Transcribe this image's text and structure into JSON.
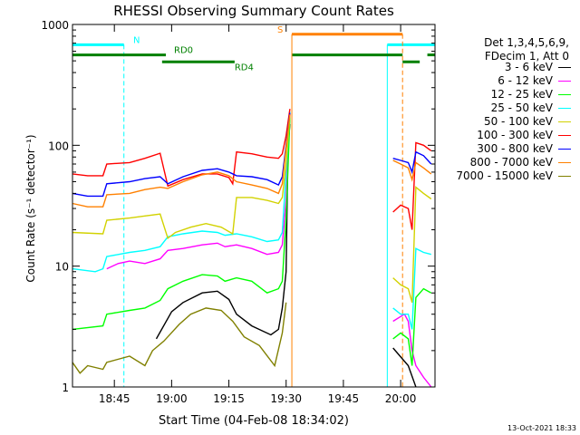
{
  "chart_data": {
    "type": "line",
    "title": "RHESSI Observing Summary Count Rates",
    "xlabel": "Start Time (04-Feb-08 18:34:02)",
    "ylabel": "Count Rate (s⁻¹ detector⁻¹)",
    "yscale": "log",
    "ylim": [
      1,
      1000
    ],
    "xlim": [
      "18:34:02",
      "20:09:00"
    ],
    "x_ticks": [
      "18:45",
      "19:00",
      "19:15",
      "19:30",
      "19:45",
      "20:00"
    ],
    "y_ticks": [
      {
        "value": 1,
        "label": "1"
      },
      {
        "value": 10,
        "label": "10"
      },
      {
        "value": 100,
        "label": "100"
      },
      {
        "value": 1000,
        "label": "1000"
      }
    ],
    "legend": {
      "position": "right",
      "header": [
        "Det 1,3,4,5,6,9,",
        "FDecim 1, Att 0"
      ]
    },
    "series": [
      {
        "name": "3 - 6 keV",
        "color": "#000000",
        "points": [
          [
            "18:34",
            null
          ],
          [
            "18:55",
            null
          ],
          [
            "18:56",
            2.5
          ],
          [
            "19:00",
            4.2
          ],
          [
            "19:03",
            5.0
          ],
          [
            "19:08",
            6.0
          ],
          [
            "19:12",
            6.2
          ],
          [
            "19:15",
            5.3
          ],
          [
            "19:17",
            4.0
          ],
          [
            "19:21",
            3.2
          ],
          [
            "19:26",
            2.7
          ],
          [
            "19:28",
            3.0
          ],
          [
            "19:29",
            4.5
          ],
          [
            "19:30",
            9.0
          ],
          [
            "19:30:30",
            100
          ],
          [
            "19:31",
            150
          ],
          [
            "19:31:30",
            null
          ],
          [
            "19:57",
            null
          ],
          [
            "19:58",
            2.1
          ],
          [
            "20:02",
            1.5
          ],
          [
            "20:04",
            1.0
          ]
        ]
      },
      {
        "name": "6 - 12 keV",
        "color": "#ff00ff",
        "points": [
          [
            "18:34",
            null
          ],
          [
            "18:42",
            null
          ],
          [
            "18:43",
            9.5
          ],
          [
            "18:46",
            10.5
          ],
          [
            "18:49",
            11.0
          ],
          [
            "18:53",
            10.5
          ],
          [
            "18:57",
            11.5
          ],
          [
            "18:59",
            13.5
          ],
          [
            "19:03",
            14.0
          ],
          [
            "19:08",
            15.0
          ],
          [
            "19:12",
            15.5
          ],
          [
            "19:14",
            14.5
          ],
          [
            "19:17",
            15.0
          ],
          [
            "19:21",
            14.0
          ],
          [
            "19:25",
            12.5
          ],
          [
            "19:28",
            13.0
          ],
          [
            "19:29",
            15.0
          ],
          [
            "19:30",
            35
          ],
          [
            "19:31",
            180
          ],
          [
            "19:31:30",
            null
          ],
          [
            "19:57",
            null
          ],
          [
            "19:58",
            3.5
          ],
          [
            "20:01",
            4.0
          ],
          [
            "20:02",
            3.5
          ],
          [
            "20:03",
            2.0
          ],
          [
            "20:04",
            1.5
          ],
          [
            "20:06",
            1.2
          ],
          [
            "20:08",
            1.0
          ]
        ]
      },
      {
        "name": "12 - 25 keV",
        "color": "#00ff00",
        "points": [
          [
            "18:34",
            3.0
          ],
          [
            "18:42",
            3.2
          ],
          [
            "18:43",
            4.0
          ],
          [
            "18:49",
            4.3
          ],
          [
            "18:53",
            4.5
          ],
          [
            "18:57",
            5.2
          ],
          [
            "18:59",
            6.5
          ],
          [
            "19:03",
            7.5
          ],
          [
            "19:08",
            8.5
          ],
          [
            "19:12",
            8.3
          ],
          [
            "19:14",
            7.5
          ],
          [
            "19:17",
            8.0
          ],
          [
            "19:21",
            7.5
          ],
          [
            "19:25",
            6.0
          ],
          [
            "19:28",
            6.5
          ],
          [
            "19:29",
            7.5
          ],
          [
            "19:30",
            25
          ],
          [
            "19:31",
            170
          ],
          [
            "19:31:30",
            null
          ],
          [
            "19:57",
            null
          ],
          [
            "19:58",
            2.5
          ],
          [
            "20:00",
            2.8
          ],
          [
            "20:02",
            2.5
          ],
          [
            "20:03",
            1.5
          ],
          [
            "20:04",
            5.5
          ],
          [
            "20:06",
            6.5
          ],
          [
            "20:08",
            6.0
          ]
        ]
      },
      {
        "name": "25 - 50 keV",
        "color": "#00ffff",
        "points": [
          [
            "18:34",
            9.5
          ],
          [
            "18:40",
            9.0
          ],
          [
            "18:42",
            9.5
          ],
          [
            "18:43",
            12.0
          ],
          [
            "18:49",
            13.0
          ],
          [
            "18:53",
            13.5
          ],
          [
            "18:57",
            14.5
          ],
          [
            "18:59",
            17.5
          ],
          [
            "19:03",
            18.5
          ],
          [
            "19:08",
            19.5
          ],
          [
            "19:12",
            19.0
          ],
          [
            "19:14",
            18.0
          ],
          [
            "19:17",
            18.5
          ],
          [
            "19:21",
            17.5
          ],
          [
            "19:25",
            16.0
          ],
          [
            "19:28",
            16.5
          ],
          [
            "19:29",
            19.0
          ],
          [
            "19:30",
            60
          ],
          [
            "19:31",
            190
          ],
          [
            "19:31:30",
            null
          ],
          [
            "19:57",
            null
          ],
          [
            "19:58",
            4.5
          ],
          [
            "20:00",
            4.0
          ],
          [
            "20:02",
            4.0
          ],
          [
            "20:03",
            3.0
          ],
          [
            "20:04",
            14.0
          ],
          [
            "20:06",
            13.0
          ],
          [
            "20:08",
            12.5
          ]
        ]
      },
      {
        "name": "50 - 100 keV",
        "color": "#d2d200",
        "points": [
          [
            "18:34",
            19.0
          ],
          [
            "18:42",
            18.5
          ],
          [
            "18:43",
            24.0
          ],
          [
            "18:49",
            25.0
          ],
          [
            "18:53",
            26.0
          ],
          [
            "18:57",
            27.0
          ],
          [
            "18:59",
            17.0
          ],
          [
            "19:01",
            19.0
          ],
          [
            "19:05",
            21.0
          ],
          [
            "19:09",
            22.5
          ],
          [
            "19:13",
            21.0
          ],
          [
            "19:16",
            18.5
          ],
          [
            "19:17",
            37.0
          ],
          [
            "19:21",
            37.0
          ],
          [
            "19:25",
            35.0
          ],
          [
            "19:28",
            33.0
          ],
          [
            "19:29",
            37.0
          ],
          [
            "19:30",
            70
          ],
          [
            "19:31",
            180
          ],
          [
            "19:31:30",
            null
          ],
          [
            "19:57",
            null
          ],
          [
            "19:58",
            8.0
          ],
          [
            "20:00",
            7.0
          ],
          [
            "20:02",
            6.5
          ],
          [
            "20:03",
            5.0
          ],
          [
            "20:04",
            45.0
          ],
          [
            "20:06",
            40.0
          ],
          [
            "20:08",
            36.0
          ]
        ]
      },
      {
        "name": "100 - 300 keV",
        "color": "#ff0000",
        "points": [
          [
            "18:34",
            58
          ],
          [
            "18:38",
            56
          ],
          [
            "18:42",
            56
          ],
          [
            "18:43",
            70
          ],
          [
            "18:49",
            72
          ],
          [
            "18:53",
            78
          ],
          [
            "18:57",
            86
          ],
          [
            "18:59",
            46
          ],
          [
            "19:03",
            52
          ],
          [
            "19:08",
            58
          ],
          [
            "19:12",
            58
          ],
          [
            "19:15",
            54
          ],
          [
            "19:16",
            48
          ],
          [
            "19:17",
            88
          ],
          [
            "19:21",
            85
          ],
          [
            "19:25",
            80
          ],
          [
            "19:28",
            78
          ],
          [
            "19:29",
            85
          ],
          [
            "19:30",
            120
          ],
          [
            "19:31",
            200
          ],
          [
            "19:31:30",
            null
          ],
          [
            "19:57",
            null
          ],
          [
            "19:58",
            28
          ],
          [
            "20:00",
            32
          ],
          [
            "20:02",
            30
          ],
          [
            "20:03",
            20
          ],
          [
            "20:04",
            105
          ],
          [
            "20:06",
            100
          ],
          [
            "20:08",
            90
          ]
        ]
      },
      {
        "name": "300 - 800 keV",
        "color": "#0000ff",
        "points": [
          [
            "18:34",
            40
          ],
          [
            "18:38",
            38
          ],
          [
            "18:42",
            38
          ],
          [
            "18:43",
            48
          ],
          [
            "18:49",
            50
          ],
          [
            "18:53",
            53
          ],
          [
            "18:57",
            55
          ],
          [
            "18:59",
            48
          ],
          [
            "19:03",
            55
          ],
          [
            "19:08",
            62
          ],
          [
            "19:12",
            64
          ],
          [
            "19:15",
            60
          ],
          [
            "19:17",
            56
          ],
          [
            "19:21",
            55
          ],
          [
            "19:25",
            52
          ],
          [
            "19:28",
            47
          ],
          [
            "19:29",
            55
          ],
          [
            "19:30",
            100
          ],
          [
            "19:31",
            185
          ],
          [
            "19:31:30",
            null
          ],
          [
            "19:57",
            null
          ],
          [
            "19:58",
            78
          ],
          [
            "20:00",
            75
          ],
          [
            "20:02",
            72
          ],
          [
            "20:03",
            60
          ],
          [
            "20:04",
            88
          ],
          [
            "20:06",
            82
          ],
          [
            "20:08",
            70
          ]
        ]
      },
      {
        "name": "800 - 7000 keV",
        "color": "#ff8000",
        "points": [
          [
            "18:34",
            33
          ],
          [
            "18:38",
            31
          ],
          [
            "18:42",
            31
          ],
          [
            "18:43",
            39
          ],
          [
            "18:49",
            40
          ],
          [
            "18:53",
            43
          ],
          [
            "18:57",
            45
          ],
          [
            "18:59",
            44
          ],
          [
            "19:03",
            50
          ],
          [
            "19:08",
            57
          ],
          [
            "19:12",
            60
          ],
          [
            "19:15",
            56
          ],
          [
            "19:17",
            50
          ],
          [
            "19:21",
            47
          ],
          [
            "19:25",
            44
          ],
          [
            "19:28",
            40
          ],
          [
            "19:29",
            48
          ],
          [
            "19:30",
            95
          ],
          [
            "19:31",
            180
          ],
          [
            "19:31:30",
            null
          ],
          [
            "19:57",
            null
          ],
          [
            "19:58",
            75
          ],
          [
            "20:00",
            70
          ],
          [
            "20:02",
            65
          ],
          [
            "20:03",
            52
          ],
          [
            "20:04",
            72
          ],
          [
            "20:06",
            65
          ],
          [
            "20:08",
            58
          ]
        ]
      },
      {
        "name": "7000 - 15000 keV",
        "color": "#808000",
        "points": [
          [
            "18:34",
            1.6
          ],
          [
            "18:36",
            1.3
          ],
          [
            "18:38",
            1.5
          ],
          [
            "18:42",
            1.4
          ],
          [
            "18:43",
            1.6
          ],
          [
            "18:49",
            1.8
          ],
          [
            "18:53",
            1.5
          ],
          [
            "18:55",
            2.0
          ],
          [
            "18:58",
            2.4
          ],
          [
            "19:02",
            3.3
          ],
          [
            "19:05",
            4.0
          ],
          [
            "19:09",
            4.5
          ],
          [
            "19:13",
            4.3
          ],
          [
            "19:16",
            3.5
          ],
          [
            "19:19",
            2.6
          ],
          [
            "19:23",
            2.2
          ],
          [
            "19:27",
            1.5
          ],
          [
            "19:29",
            2.8
          ],
          [
            "19:30",
            5.0
          ],
          [
            "19:30:30",
            null
          ]
        ]
      }
    ],
    "state_bars": [
      {
        "label": "N",
        "color": "#00ffff",
        "y": 680,
        "segments": [
          [
            "18:34:02",
            "18:47:30"
          ],
          [
            "19:56:30",
            "20:09:00"
          ]
        ],
        "markers": [
          "18:34:02",
          "18:47:30",
          "19:56:30",
          "20:09:00"
        ]
      },
      {
        "label": "RD0",
        "color": "#008000",
        "y": 560,
        "segments": [
          [
            "18:34:02",
            "18:58:30"
          ],
          [
            "19:31:30",
            "20:00:30"
          ],
          [
            "20:07:00",
            "20:09:00"
          ]
        ],
        "markers": []
      },
      {
        "label": "RD4",
        "color": "#008000",
        "y": 490,
        "segments": [
          [
            "18:57:30",
            "19:16:30"
          ],
          [
            "20:00:30",
            "20:05:00"
          ]
        ],
        "markers": []
      },
      {
        "label": "S",
        "color": "#ff8000",
        "y": 830,
        "segments": [
          [
            "19:31:30",
            "20:00:30"
          ]
        ],
        "markers": [
          "19:31:30",
          "20:00:30"
        ]
      }
    ],
    "grid": false
  },
  "timestamp": "13-Oct-2021 18:33"
}
